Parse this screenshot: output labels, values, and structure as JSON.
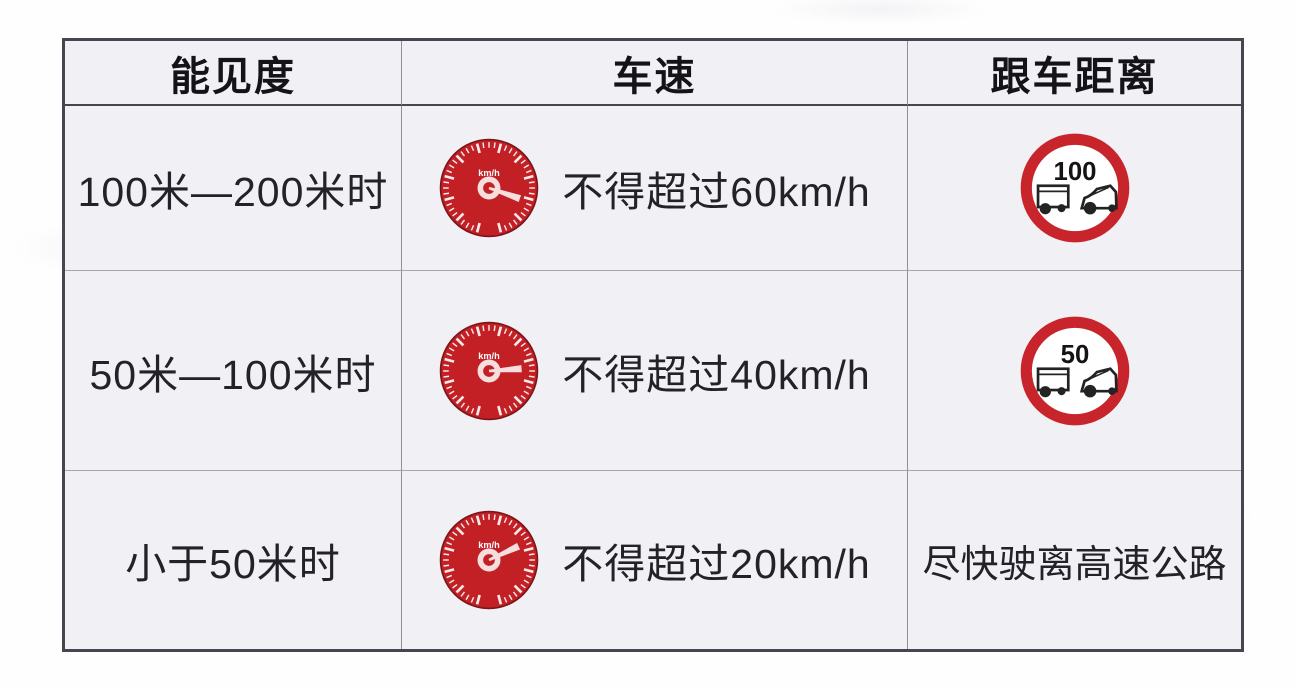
{
  "table": {
    "gauge_unit": "km/h",
    "headers": [
      {
        "label": "能见度"
      },
      {
        "label": "车速"
      },
      {
        "label": "跟车距离"
      }
    ],
    "rows": [
      {
        "visibility": "100米—200米时",
        "speed": {
          "icon": "speedometer-icon",
          "label": "不得超过60km/h",
          "needle_angle_deg": 199
        },
        "distance": {
          "icon": "following-distance-sign-icon",
          "sign_value": "100"
        }
      },
      {
        "visibility": "50米—100米时",
        "speed": {
          "icon": "speedometer-icon",
          "label": "不得超过40km/h",
          "needle_angle_deg": 176
        },
        "distance": {
          "icon": "following-distance-sign-icon",
          "sign_value": "50"
        }
      },
      {
        "visibility": "小于50米时",
        "speed": {
          "icon": "speedometer-icon",
          "label": "不得超过20km/h",
          "needle_angle_deg": 155
        },
        "distance": {
          "text": "尽快驶离高速公路"
        }
      }
    ],
    "colors": {
      "cell_bg": "#f1f0f5",
      "border_dark": "#47454d",
      "border_light": "#a7a6ae",
      "gauge_red": "#c32026",
      "sign_ring_red": "#c8242b",
      "text": "#232228"
    }
  }
}
